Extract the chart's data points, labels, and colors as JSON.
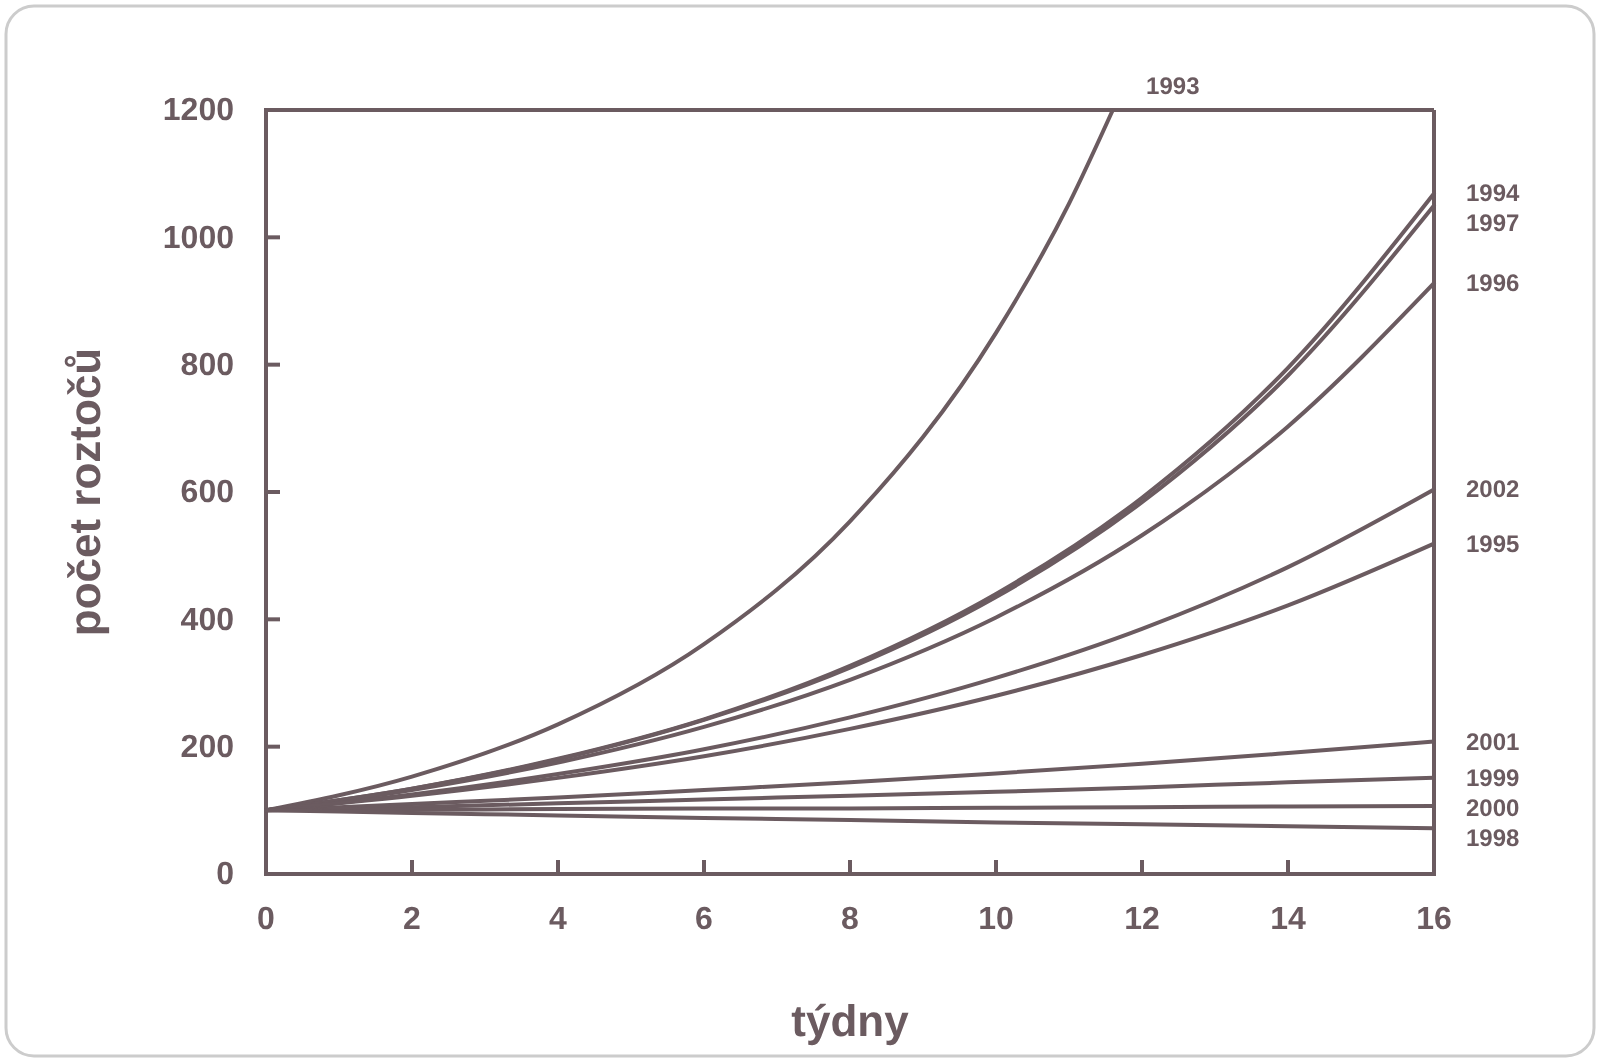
{
  "chart_data": {
    "type": "line",
    "xlabel": "týdny",
    "ylabel": "počet roztočů",
    "xlim": [
      0,
      16
    ],
    "xticks": [
      0,
      2,
      4,
      6,
      8,
      10,
      12,
      14,
      16
    ],
    "ylim": [
      0,
      1200
    ],
    "yticks": [
      0,
      200,
      400,
      600,
      800,
      1000,
      1200
    ],
    "grid": false,
    "marker": "none",
    "line_style": "solid",
    "x": [
      0,
      2,
      4,
      6,
      8,
      10,
      12,
      14,
      16
    ],
    "series": [
      {
        "name": "1993",
        "color": "#6b5b60",
        "x": [
          0,
          2,
          4,
          6,
          8,
          10,
          11,
          11.6
        ],
        "values": [
          100,
          153,
          235,
          361,
          554,
          850,
          1053,
          1200
        ]
      },
      {
        "name": "1994",
        "color": "#6b5b60",
        "values": [
          100,
          134,
          181,
          243,
          327,
          440,
          591,
          795,
          1069
        ]
      },
      {
        "name": "1997",
        "color": "#6b5b60",
        "values": [
          100,
          134,
          180,
          242,
          324,
          435,
          584,
          783,
          1050
        ]
      },
      {
        "name": "1996",
        "color": "#6b5b60",
        "values": [
          100,
          132,
          175,
          231,
          305,
          403,
          532,
          703,
          928
        ]
      },
      {
        "name": "2002",
        "color": "#6b5b60",
        "values": [
          100,
          125,
          157,
          196,
          246,
          308,
          385,
          482,
          604
        ]
      },
      {
        "name": "1995",
        "color": "#6b5b60",
        "values": [
          100,
          123,
          151,
          185,
          228,
          280,
          344,
          422,
          519
        ]
      },
      {
        "name": "2001",
        "color": "#6b5b60",
        "values": [
          100,
          110,
          120,
          132,
          144,
          158,
          173,
          190,
          208
        ]
      },
      {
        "name": "1999",
        "color": "#6b5b60",
        "values": [
          100,
          105,
          111,
          117,
          123,
          129,
          136,
          144,
          151
        ]
      },
      {
        "name": "2000",
        "color": "#6b5b60",
        "values": [
          100,
          101,
          102,
          103,
          103,
          104,
          105,
          106,
          107
        ]
      },
      {
        "name": "1998",
        "color": "#6b5b60",
        "values": [
          100,
          96,
          92,
          88,
          85,
          81,
          78,
          75,
          72
        ]
      }
    ]
  }
}
